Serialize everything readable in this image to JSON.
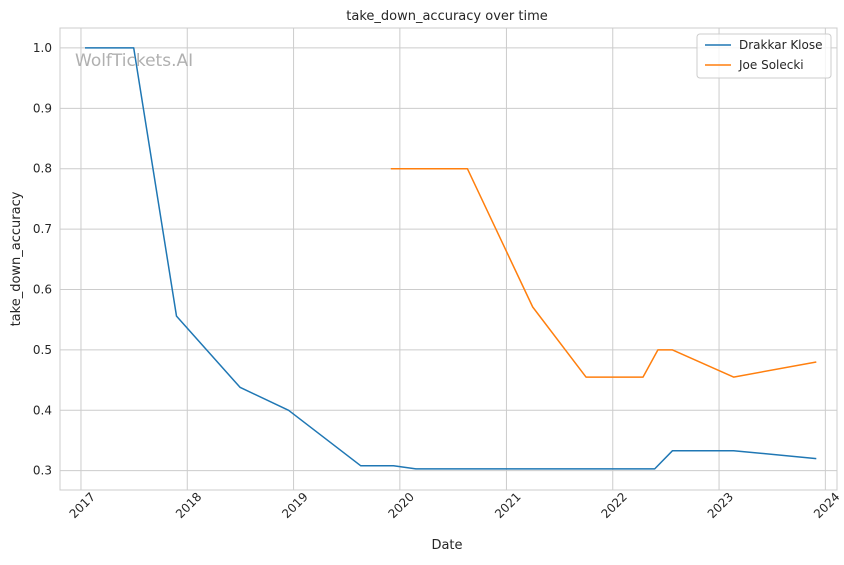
{
  "watermark": "WolfTickets.AI",
  "chart_data": {
    "type": "line",
    "title": "take_down_accuracy over time",
    "xlabel": "Date",
    "ylabel": "take_down_accuracy",
    "x_scale": "time",
    "xlim": [
      "2016-10-21",
      "2024-02-10"
    ],
    "ylim": [
      0.268,
      1.033
    ],
    "x_ticks": [
      "2017-01-01",
      "2018-01-01",
      "2019-01-01",
      "2020-01-01",
      "2021-01-01",
      "2022-01-01",
      "2023-01-01",
      "2024-01-01"
    ],
    "x_tick_labels": [
      "2017",
      "2018",
      "2019",
      "2020",
      "2021",
      "2022",
      "2023",
      "2024"
    ],
    "y_ticks": [
      0.3,
      0.4,
      0.5,
      0.6,
      0.7,
      0.8,
      0.9,
      1.0
    ],
    "y_tick_labels": [
      "0.3",
      "0.4",
      "0.5",
      "0.6",
      "0.7",
      "0.8",
      "0.9",
      "1.0"
    ],
    "grid": true,
    "legend_position": "top-right",
    "series": [
      {
        "name": "Drakkar Klose",
        "color": "#1f77b4",
        "points": [
          {
            "x": "2017-01-15",
            "y": 1.0
          },
          {
            "x": "2017-07-01",
            "y": 1.0
          },
          {
            "x": "2017-11-25",
            "y": 0.556
          },
          {
            "x": "2018-07-01",
            "y": 0.438
          },
          {
            "x": "2018-12-15",
            "y": 0.4
          },
          {
            "x": "2019-08-20",
            "y": 0.308
          },
          {
            "x": "2019-12-10",
            "y": 0.308
          },
          {
            "x": "2020-02-25",
            "y": 0.303
          },
          {
            "x": "2022-05-25",
            "y": 0.303
          },
          {
            "x": "2022-07-25",
            "y": 0.333
          },
          {
            "x": "2023-02-20",
            "y": 0.333
          },
          {
            "x": "2023-12-01",
            "y": 0.32
          }
        ]
      },
      {
        "name": "Joe Solecki",
        "color": "#ff7f0e",
        "points": [
          {
            "x": "2019-12-01",
            "y": 0.8
          },
          {
            "x": "2020-08-20",
            "y": 0.8
          },
          {
            "x": "2021-04-01",
            "y": 0.571
          },
          {
            "x": "2021-10-01",
            "y": 0.455
          },
          {
            "x": "2022-04-15",
            "y": 0.455
          },
          {
            "x": "2022-06-05",
            "y": 0.5
          },
          {
            "x": "2022-07-25",
            "y": 0.5
          },
          {
            "x": "2023-02-20",
            "y": 0.455
          },
          {
            "x": "2023-12-01",
            "y": 0.48
          }
        ]
      }
    ]
  }
}
